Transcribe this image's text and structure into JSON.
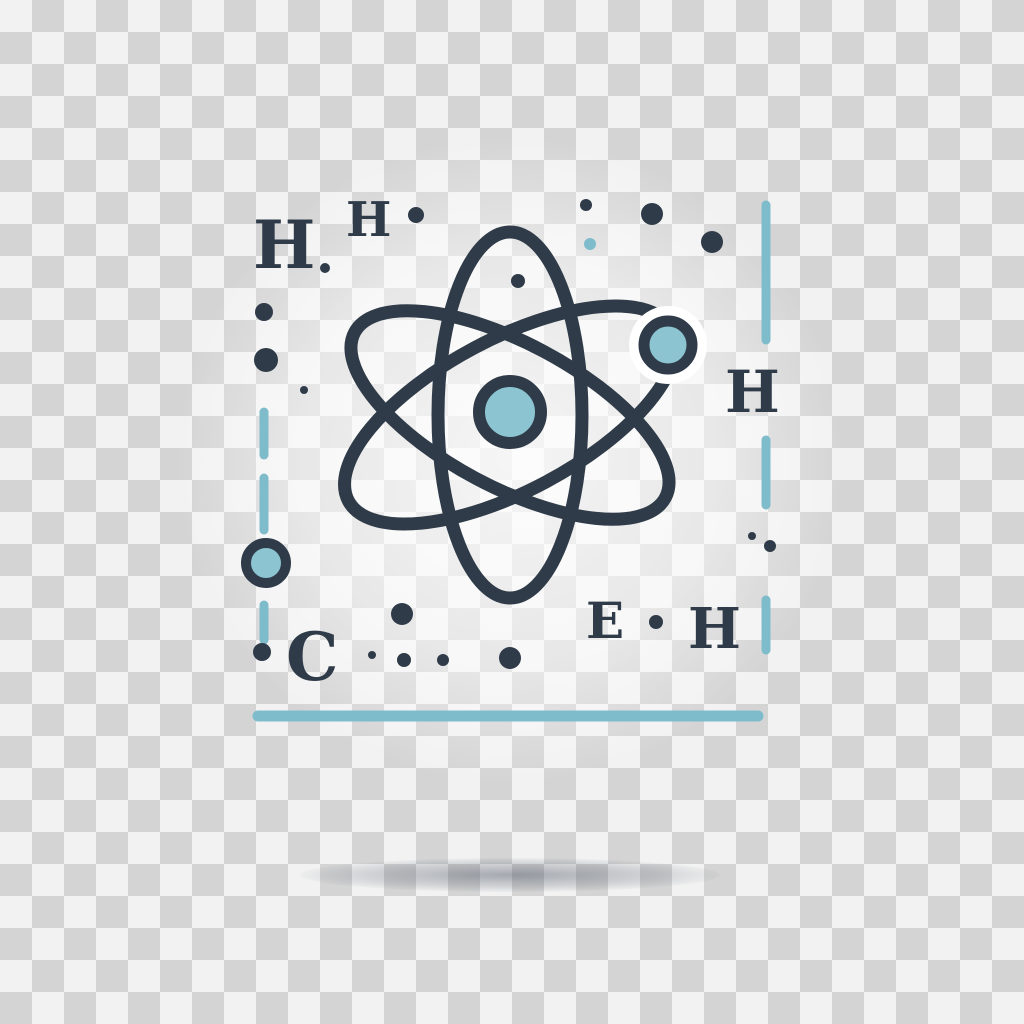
{
  "labels": {
    "h_top_left": "H",
    "h_top_second": "H",
    "h_right": "H",
    "c_bottom": "C",
    "e_bottom_right": "E",
    "h_bottom_right": "H"
  },
  "colors": {
    "dark": "#2f3b48",
    "teal": "#7fbccb",
    "nucleus_fill": "#8cc4d2"
  },
  "icons": {
    "main": "atom-icon"
  }
}
